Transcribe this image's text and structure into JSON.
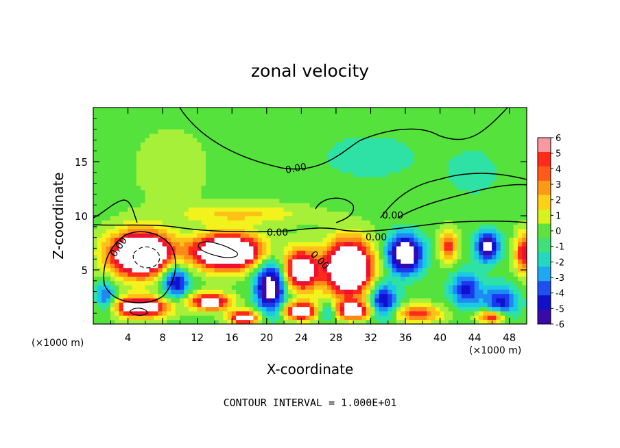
{
  "chart_data": {
    "type": "heatmap",
    "title": "zonal velocity",
    "xlabel": "X-coordinate",
    "ylabel": "Z-coordinate",
    "x_scale_note_left": "(×1000 m)",
    "x_scale_note_right": "(×1000 m)",
    "xlim": [
      0,
      50
    ],
    "ylim": [
      0,
      20
    ],
    "x_ticks": [
      4,
      8,
      12,
      16,
      20,
      24,
      28,
      32,
      36,
      40,
      44,
      48
    ],
    "y_ticks": [
      5,
      10,
      15
    ],
    "colorbar": {
      "ticks": [
        6,
        5,
        4,
        3,
        2,
        1,
        0,
        -1,
        -2,
        -3,
        -4,
        -5,
        -6
      ],
      "vmin": -6,
      "vmax": 6
    },
    "contour_labels": [
      "0.00",
      "0.00",
      "0.00",
      "0.00",
      "0.00",
      "0.00"
    ],
    "footer": "CONTOUR INTERVAL = 1.000E+01",
    "blobs": [
      {
        "x": 5.5,
        "z": 6.5,
        "rx": 4.5,
        "rz": 2.6,
        "v": 12
      },
      {
        "x": 5.5,
        "z": 1.6,
        "rx": 4.0,
        "rz": 1.2,
        "v": 9
      },
      {
        "x": 15.5,
        "z": 6.7,
        "rx": 5.0,
        "rz": 2.0,
        "v": 12
      },
      {
        "x": 13.5,
        "z": 2.1,
        "rx": 3.0,
        "rz": 1.0,
        "v": 8
      },
      {
        "x": 17.5,
        "z": 0.6,
        "rx": 2.2,
        "rz": 0.8,
        "v": 8
      },
      {
        "x": 24.0,
        "z": 5.0,
        "rx": 2.5,
        "rz": 2.4,
        "v": 9
      },
      {
        "x": 24.0,
        "z": 1.2,
        "rx": 2.6,
        "rz": 1.0,
        "v": 8
      },
      {
        "x": 29.5,
        "z": 5.2,
        "rx": 3.4,
        "rz": 3.2,
        "v": 12
      },
      {
        "x": 30.0,
        "z": 1.3,
        "rx": 2.6,
        "rz": 1.0,
        "v": 8
      },
      {
        "x": 37.5,
        "z": 1.0,
        "rx": 3.5,
        "rz": 1.0,
        "v": 5
      },
      {
        "x": 41.0,
        "z": 7.3,
        "rx": 1.3,
        "rz": 1.8,
        "v": 5
      },
      {
        "x": 46.0,
        "z": 0.7,
        "rx": 2.0,
        "rz": 0.8,
        "v": 7
      },
      {
        "x": 49.8,
        "z": 6.5,
        "rx": 1.4,
        "rz": 2.4,
        "v": 6
      },
      {
        "x": 17.0,
        "z": 10.2,
        "rx": 9.0,
        "rz": 1.2,
        "v": 2.6
      },
      {
        "x": 9.0,
        "z": 14.5,
        "rx": 5.5,
        "rz": 4.5,
        "v": 0.9
      },
      {
        "x": 9.5,
        "z": 4.0,
        "rx": 2.0,
        "rz": 2.0,
        "v": -6
      },
      {
        "x": 20.5,
        "z": 3.5,
        "rx": 2.2,
        "rz": 3.0,
        "v": -8
      },
      {
        "x": 36.0,
        "z": 6.5,
        "rx": 2.5,
        "rz": 2.2,
        "v": -9
      },
      {
        "x": 45.5,
        "z": 7.2,
        "rx": 1.6,
        "rz": 1.7,
        "v": -8
      },
      {
        "x": 33.5,
        "z": 2.2,
        "rx": 2.0,
        "rz": 2.0,
        "v": -6
      },
      {
        "x": 43.0,
        "z": 3.2,
        "rx": 2.2,
        "rz": 2.0,
        "v": -5
      },
      {
        "x": 1.5,
        "z": 2.5,
        "rx": 1.6,
        "rz": 1.8,
        "v": -4
      },
      {
        "x": 27.0,
        "z": 1.2,
        "rx": 1.5,
        "rz": 1.0,
        "v": -4
      },
      {
        "x": 32.0,
        "z": 15.5,
        "rx": 8.0,
        "rz": 3.0,
        "v": -1.2
      },
      {
        "x": 44.0,
        "z": 14.0,
        "rx": 5.0,
        "rz": 3.5,
        "v": -1.0
      },
      {
        "x": 47.0,
        "z": 2.0,
        "rx": 2.5,
        "rz": 2.0,
        "v": -5
      }
    ]
  }
}
